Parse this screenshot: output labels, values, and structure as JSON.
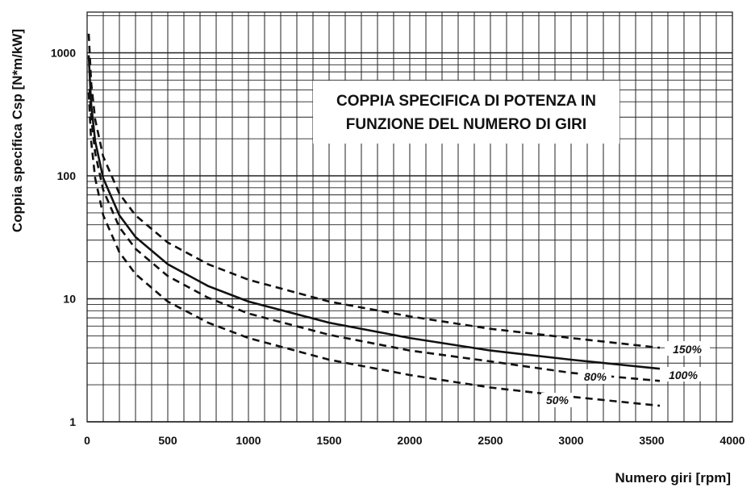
{
  "chart_data": {
    "type": "line",
    "title_lines": [
      "COPPIA SPECIFICA DI POTENZA IN",
      "FUNZIONE DEL NUMERO DI GIRI"
    ],
    "xlabel": "Numero giri [rpm]",
    "ylabel": "Coppia specifica Csp [N*m/kW]",
    "xlim": [
      0,
      4000
    ],
    "ylim": [
      1,
      2000
    ],
    "y_scale": "log",
    "x_ticks": [
      0,
      500,
      1000,
      1500,
      2000,
      2500,
      3000,
      3500,
      4000
    ],
    "x_tick_labels": [
      "0",
      "500",
      "1000",
      "1500",
      "2000",
      "2500",
      "3000",
      "3500",
      "4000"
    ],
    "y_ticks": [
      1,
      10,
      100,
      1000
    ],
    "y_tick_labels": [
      "1",
      "10",
      "100",
      "1000"
    ],
    "grid": true,
    "series": [
      {
        "name": "150%",
        "line_style": "dashed",
        "x": [
          10,
          25,
          50,
          100,
          200,
          300,
          500,
          750,
          1000,
          1500,
          2000,
          2500,
          3000,
          3550
        ],
        "y": [
          1430,
          573,
          287,
          143,
          71.6,
          47.7,
          28.7,
          19.1,
          14.3,
          9.5,
          7.2,
          5.7,
          4.8,
          4.0
        ]
      },
      {
        "name": "100%",
        "line_style": "solid",
        "x": [
          10,
          25,
          50,
          100,
          200,
          300,
          500,
          750,
          1000,
          1500,
          2000,
          2500,
          3000,
          3550
        ],
        "y": [
          955,
          382,
          191,
          95.5,
          47.7,
          31.8,
          19.1,
          12.7,
          9.5,
          6.4,
          4.8,
          3.8,
          3.2,
          2.7
        ]
      },
      {
        "name": "80%",
        "line_style": "dashed",
        "x": [
          15,
          25,
          50,
          100,
          200,
          300,
          500,
          750,
          1000,
          1500,
          2000,
          2500,
          3000,
          3550
        ],
        "y": [
          509,
          306,
          153,
          76.4,
          38.2,
          25.5,
          15.3,
          10.2,
          7.6,
          5.1,
          3.8,
          3.1,
          2.5,
          2.15
        ]
      },
      {
        "name": "50%",
        "line_style": "dashed",
        "x": [
          10,
          25,
          50,
          100,
          200,
          300,
          500,
          750,
          1000,
          1500,
          2000,
          2500,
          3000,
          3550
        ],
        "y": [
          477,
          191,
          95.5,
          47.7,
          23.9,
          15.9,
          9.5,
          6.4,
          4.8,
          3.2,
          2.4,
          1.9,
          1.6,
          1.35
        ]
      }
    ]
  }
}
